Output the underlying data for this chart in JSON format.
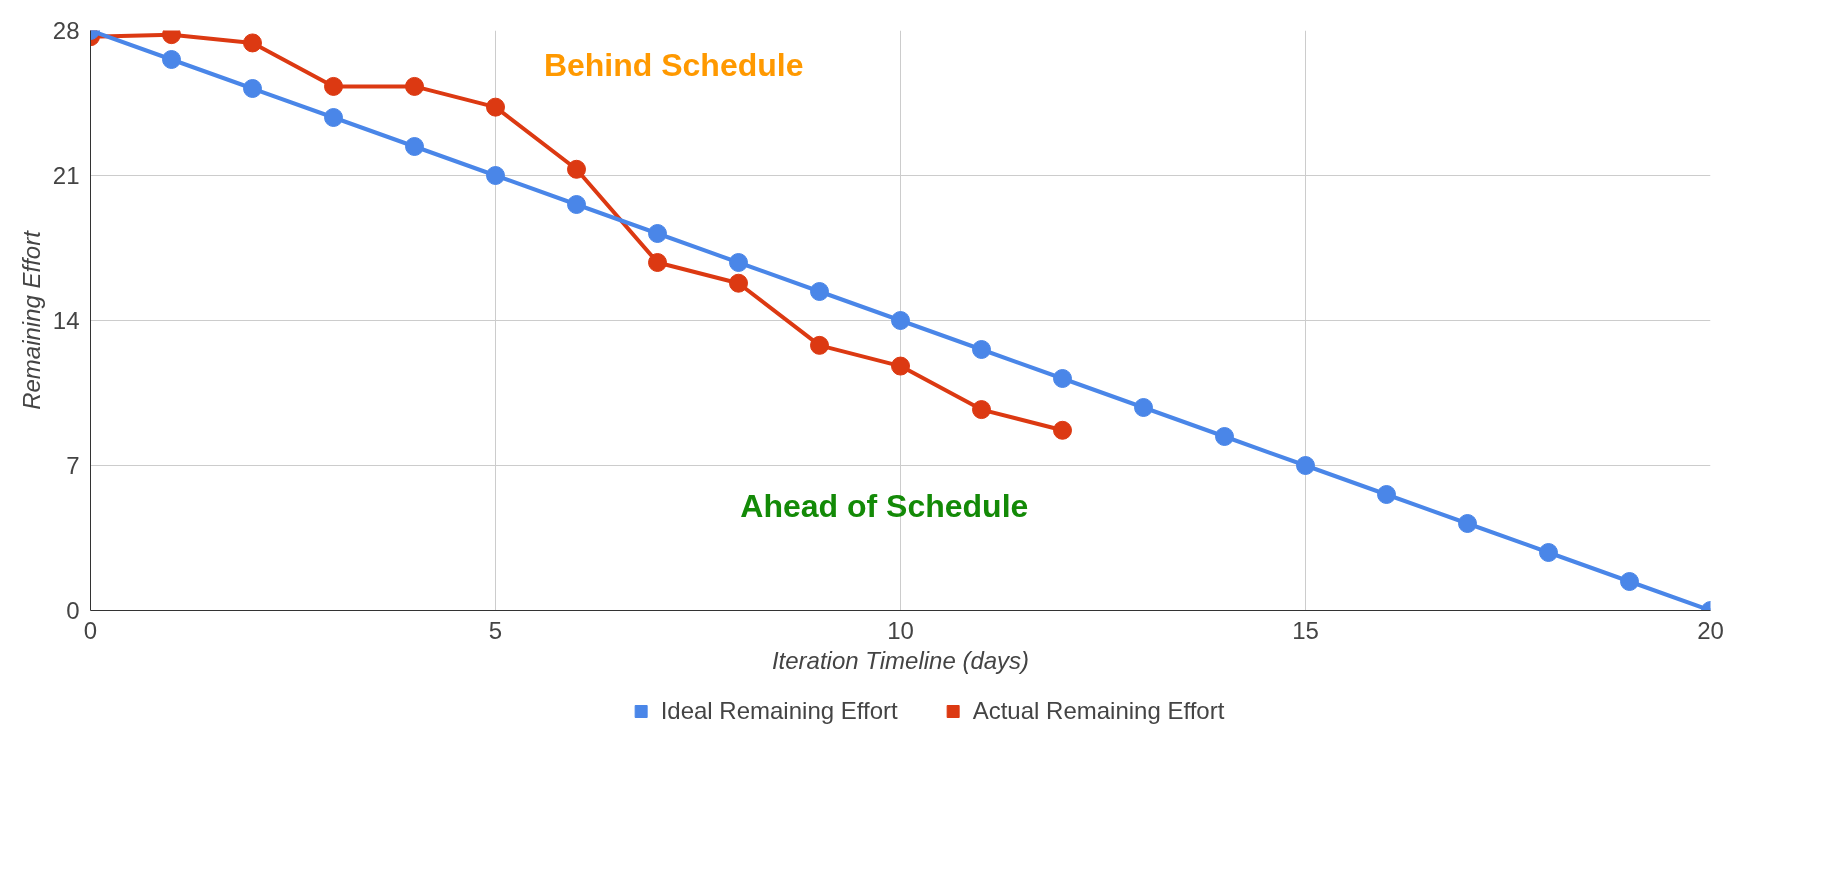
{
  "chart_data": {
    "type": "line",
    "xlabel": "Iteration Timeline (days)",
    "ylabel": "Remaining Effort",
    "xlim": [
      0,
      20
    ],
    "xticks": [
      0,
      5,
      10,
      15,
      20
    ],
    "ylim": [
      0,
      28
    ],
    "yticks": [
      0,
      7,
      14,
      21,
      28
    ],
    "grid": true,
    "legend": "bottom",
    "marker": "circle",
    "line_style": "solid",
    "series": [
      {
        "name": "Ideal Remaining Effort",
        "color": "#4a86e8",
        "x": [
          0,
          1,
          2,
          3,
          4,
          5,
          6,
          7,
          8,
          9,
          10,
          11,
          12,
          13,
          14,
          15,
          16,
          17,
          18,
          19,
          20
        ],
        "values": [
          28,
          26.6,
          25.2,
          23.8,
          22.4,
          21,
          19.6,
          18.2,
          16.8,
          15.4,
          14,
          12.6,
          11.2,
          9.8,
          8.4,
          7,
          5.6,
          4.2,
          2.8,
          1.4,
          0
        ]
      },
      {
        "name": "Actual Remaining Effort",
        "color": "#dc3912",
        "x": [
          0,
          1,
          2,
          3,
          4,
          5,
          6,
          7,
          8,
          9,
          10,
          11,
          12
        ],
        "values": [
          27.7,
          27.8,
          27.4,
          25.3,
          25.3,
          24.3,
          21.3,
          16.8,
          15.8,
          12.8,
          11.8,
          9.7,
          8.7
        ]
      }
    ],
    "annotations": [
      "Behind Schedule",
      "Ahead of Schedule"
    ]
  }
}
